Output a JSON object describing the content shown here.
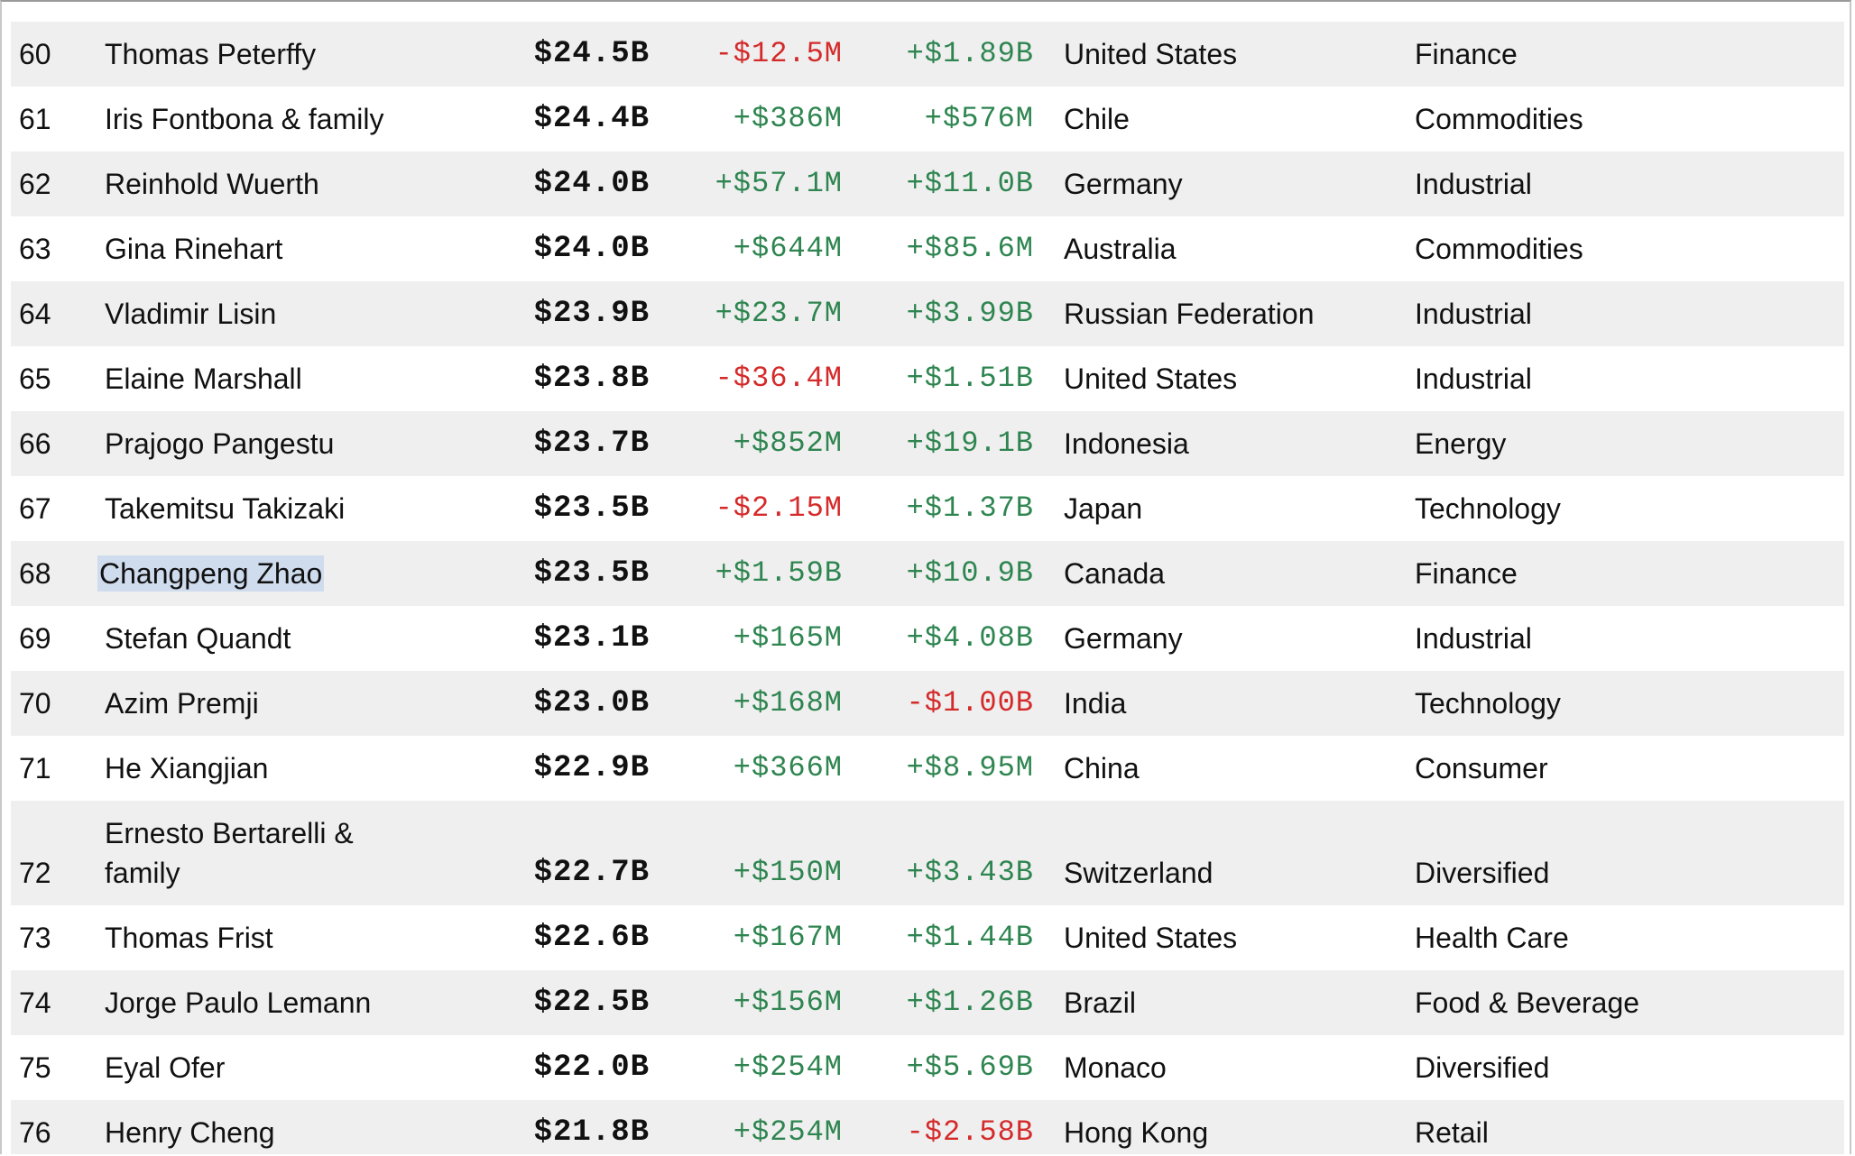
{
  "rows": [
    {
      "rank": "60",
      "name": "Thomas Peterffy",
      "worth": "$24.5B",
      "last_change": "-$12.5M",
      "ytd_change": "+$1.89B",
      "country": "United States",
      "industry": "Finance"
    },
    {
      "rank": "61",
      "name": "Iris Fontbona & family",
      "worth": "$24.4B",
      "last_change": "+$386M",
      "ytd_change": "+$576M",
      "country": "Chile",
      "industry": "Commodities"
    },
    {
      "rank": "62",
      "name": "Reinhold Wuerth",
      "worth": "$24.0B",
      "last_change": "+$57.1M",
      "ytd_change": "+$11.0B",
      "country": "Germany",
      "industry": "Industrial"
    },
    {
      "rank": "63",
      "name": "Gina Rinehart",
      "worth": "$24.0B",
      "last_change": "+$644M",
      "ytd_change": "+$85.6M",
      "country": "Australia",
      "industry": "Commodities"
    },
    {
      "rank": "64",
      "name": "Vladimir Lisin",
      "worth": "$23.9B",
      "last_change": "+$23.7M",
      "ytd_change": "+$3.99B",
      "country": "Russian Federation",
      "industry": "Industrial"
    },
    {
      "rank": "65",
      "name": "Elaine Marshall",
      "worth": "$23.8B",
      "last_change": "-$36.4M",
      "ytd_change": "+$1.51B",
      "country": "United States",
      "industry": "Industrial"
    },
    {
      "rank": "66",
      "name": "Prajogo Pangestu",
      "worth": "$23.7B",
      "last_change": "+$852M",
      "ytd_change": "+$19.1B",
      "country": "Indonesia",
      "industry": "Energy"
    },
    {
      "rank": "67",
      "name": "Takemitsu Takizaki",
      "worth": "$23.5B",
      "last_change": "-$2.15M",
      "ytd_change": "+$1.37B",
      "country": "Japan",
      "industry": "Technology"
    },
    {
      "rank": "68",
      "name": "Changpeng Zhao",
      "worth": "$23.5B",
      "last_change": "+$1.59B",
      "ytd_change": "+$10.9B",
      "country": "Canada",
      "industry": "Finance",
      "highlighted": true
    },
    {
      "rank": "69",
      "name": "Stefan Quandt",
      "worth": "$23.1B",
      "last_change": "+$165M",
      "ytd_change": "+$4.08B",
      "country": "Germany",
      "industry": "Industrial"
    },
    {
      "rank": "70",
      "name": "Azim Premji",
      "worth": "$23.0B",
      "last_change": "+$168M",
      "ytd_change": "-$1.00B",
      "country": "India",
      "industry": "Technology"
    },
    {
      "rank": "71",
      "name": "He Xiangjian",
      "worth": "$22.9B",
      "last_change": "+$366M",
      "ytd_change": "+$8.95M",
      "country": "China",
      "industry": "Consumer"
    },
    {
      "rank": "72",
      "name": "Ernesto Bertarelli & family",
      "worth": "$22.7B",
      "last_change": "+$150M",
      "ytd_change": "+$3.43B",
      "country": "Switzerland",
      "industry": "Diversified",
      "wrapped": true
    },
    {
      "rank": "73",
      "name": "Thomas Frist",
      "worth": "$22.6B",
      "last_change": "+$167M",
      "ytd_change": "+$1.44B",
      "country": "United States",
      "industry": "Health Care"
    },
    {
      "rank": "74",
      "name": "Jorge Paulo Lemann",
      "worth": "$22.5B",
      "last_change": "+$156M",
      "ytd_change": "+$1.26B",
      "country": "Brazil",
      "industry": "Food & Beverage"
    },
    {
      "rank": "75",
      "name": "Eyal Ofer",
      "worth": "$22.0B",
      "last_change": "+$254M",
      "ytd_change": "+$5.69B",
      "country": "Monaco",
      "industry": "Diversified"
    },
    {
      "rank": "76",
      "name": "Henry Cheng",
      "worth": "$21.8B",
      "last_change": "+$254M",
      "ytd_change": "-$2.58B",
      "country": "Hong Kong",
      "industry": "Retail"
    }
  ],
  "colors": {
    "positive": "#2e8550",
    "negative": "#d42a2a",
    "row_stripe": "#efefef",
    "selection": "#cfdcee"
  }
}
